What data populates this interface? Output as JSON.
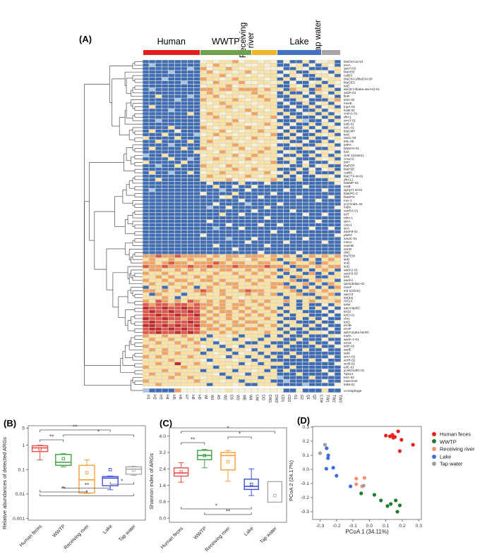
{
  "panels": {
    "a": "(A)",
    "b": "(B)",
    "c": "(C)",
    "d": "(D)"
  },
  "chart_data": [
    {
      "type": "heatmap",
      "groups": [
        {
          "name": "Human",
          "color": "#e3201b",
          "n": 9,
          "orientation": "horizontal"
        },
        {
          "name": "WWTP",
          "color": "#6fa04c",
          "n": 8,
          "orientation": "horizontal"
        },
        {
          "name": "Receiving river",
          "color": "#f0b429",
          "n": 4,
          "orientation": "vertical"
        },
        {
          "name": "Lake",
          "color": "#4472c4",
          "n": 7,
          "orientation": "horizontal"
        },
        {
          "name": "Tap water",
          "color": "#a6a6a6",
          "n": 3,
          "orientation": "vertical"
        }
      ],
      "columns": [
        "H1",
        "H2",
        "H3",
        "H4",
        "H5",
        "H6",
        "H7",
        "H8",
        "H9",
        "WI",
        "W1",
        "AS",
        "W2",
        "DS",
        "W3",
        "WE",
        "W4",
        "UW",
        "DO",
        "DW1",
        "DW2",
        "CD1",
        "CD2",
        "G1",
        "G2",
        "Q1",
        "Q2",
        "CJW",
        "TW1",
        "TW2",
        "TW3"
      ],
      "palette": {
        "B": "#3d6cb4",
        "L": "#a6c6e4",
        "C": "#f8f1d6",
        "Y": "#fce3a2",
        "O": "#f2a35f",
        "R": "#e0564a",
        "D": "#c32b2b"
      },
      "rows": [
        [
          "blaOXA10-01",
          "BBBBBBBBBCYCYYOCYYCYCBCBBYBCCYB"
        ],
        [
          "ereA",
          "BLBBBBBBBYCOYCYYCCYCYBBCYBCBYCB"
        ],
        [
          "qacH-02",
          "BBBBBBBLBOCYYOYCYYYCCCBBYCBBBCY"
        ],
        [
          "blaVEB",
          "BBBBLBBBBYOCYYCYOCYYYBCYBBYCCBY"
        ],
        [
          "catB3",
          "BBBBBBBBBYYYOCYYCYCYYCBYCBBYYCB"
        ],
        [
          "blaOXA1/blaOXA30",
          "BBBLBBBBBOYYCYOYYYYCYBYBCYBBCYY"
        ],
        [
          "blaGES",
          "BBBBBBLBBYCOYYYOCCYYCYBCBBCYBYC"
        ],
        [
          "tetE",
          "BBBBBBBBBCYYYOCYYYCCYBBYCBYBYBC"
        ],
        [
          "aac(6')-Ib(aka aacA4)-01",
          "BLBBBBBBBOOYOOYOOOYOYYBOYYBOYYB"
        ],
        [
          "aadA-01",
          "BBBBBBBBBYOYYCYYYOYYCBYBBCBYCBY"
        ],
        [
          "floR",
          "BBYBBBBLBYYOCYYCYYOYYBBYYBCBYCB"
        ],
        [
          "tetG-02",
          "BBBBBLBBBOYYYYOYCYYOYCBBYCBBBYO"
        ],
        [
          "mexE",
          "BBBBBBBBBYCYOYYYYCYYYBCBBYBCYBC"
        ],
        [
          "tnpA-01",
          "BYBBBBBBBYYCYOYCYYCYYBBCBBYBCYB"
        ],
        [
          "lnuB-01",
          "BBBBLBBBBCYYYYCYOYYCYYBBCBBYBCY"
        ],
        [
          "cmlA1-01",
          "BBBBBBBYBYOYCYYYCOYYYBYBBCYBYBC"
        ],
        [
          "dfrA1",
          "BBBBBBBBBYYOYCYYYYCYOCBYBBBCBYB"
        ],
        [
          "ermT-01",
          "BBLBBBBBBCYYYYOCYYYYCBBBYLBBCBY"
        ],
        [
          "tetB-01",
          "BBBBBBBBBYCYYOYYCCYOYYBCBBYBYCB"
        ],
        [
          "tetC-01",
          "BBBBYBBBBOYCYYYYOYYCYBCBBYBCBYC"
        ],
        [
          "blaCMY",
          "BYBBBCBBBYYYOCYCYYOYYCBYBBCBYBY"
        ],
        [
          "tetS",
          "BBBYBBBBLCYOYYCYYYYCOBYBCBBYCYB"
        ],
        [
          "vanC-03",
          "YBBBBYBBBYYCYOYYCOYYYBBYBBYBBCY"
        ],
        [
          "tetL-02",
          "BBYBBBBYBYOYYYYCYYCYYCYBBCBBYBC"
        ],
        [
          "tetPA",
          "BBBBLBBBBYYYCYOYYCYYCBBCYBBYCYB"
        ],
        [
          "blaSHV-01",
          "BYBBBBYBBOCYYYYOCYYOYYBBBYCBBYC"
        ],
        [
          "folA",
          "BBBBBBBBYYYCOYCYYYOYYBCYBBBCYCB"
        ],
        [
          "cintI-1(class1)",
          "LBBYBBBBBCYYYYOCYOYYYCBBYBYBYBY"
        ],
        [
          "cmx(A)",
          "BBBBYBBLBYYOYCYYOYYCYBYCBBBYCYB"
        ],
        [
          "tetH",
          "YBBBBBYBBYCYYYYCYCYYOBBYBCBBBCY"
        ],
        [
          "blaPER",
          "BBLBBYBBBOYYCOYYCYYYYYCBBYBCYBB"
        ],
        [
          "blaPSE",
          "BBBBBBBBBYYCYYOYYOCYYBBBYBCBCYB"
        ],
        [
          "catB8",
          "BYBBLBBYBCYYOYYCYYYOCCBYBBYBBBY"
        ],
        [
          "blaCTX-M-02",
          "BBBBBBBBBYOYYCYYOYCYYBYBCBBCYCB"
        ],
        [
          "dfrA12",
          "BBYBBBBBBYYYYOCYCCYYOYBBYBBBBYC"
        ],
        [
          "blaIMP-02",
          "BBBBBBBBBBCBBBBYBBBCBBBBBBBBBBC"
        ],
        [
          "ereB",
          "BBBBBBBBBBBYBBCBBCBBBBBBBCBBBBB"
        ],
        [
          "aph(2')-Id-02",
          "BLBBBBBBBBBBLBBBCBBBBBCBBBBBCBB"
        ],
        [
          "blaKPC-2",
          "BBBBBBBBBCBBBBYBBBBBCBBBBBBBBBB"
        ],
        [
          "blaSFO",
          "BBBBBBBBBBBBCYBBBBCBBBBBCBBBBCB"
        ],
        [
          "mcr-1",
          "BBBBBBBBBBBBBBBCBBBBBBBBBBBCBBB"
        ],
        [
          "ycjY/mdtL-01",
          "BBBBBBBBBBBCBBBBLBBBBCBBBBBBBBB"
        ],
        [
          "mdtA",
          "BBBBBBBBBBLBBCBBBBBCBBBBBBBBBBC"
        ],
        [
          "vanRA-01",
          "BBBBBBBBBBBBBBBBBCBBBBBCBBBBBBB"
        ],
        [
          "tetT",
          "BBBBBBBBBBBBYBBCBBBBBBBBBCBBCBB"
        ],
        [
          "ndm-1",
          "BBBBBBBBBBBBBBBBBBBCBBBBBBBBBBB"
        ],
        [
          "qnrA",
          "BBBBBBBBBBCBBBBBBBBBBBBBBBBCBBB"
        ],
        [
          "catA1",
          "BBBBBBBBBBBBBCBBBBCBBCBBBBBBBBB"
        ],
        [
          "strA",
          "BBBBBBBBBBBLBBBCBBBBBBBBBBCBBCB"
        ],
        [
          "aadA9-01",
          "BBBBBBBBBBBBBBBBBBBBCBBCBBBBBBB"
        ],
        [
          "pikR2",
          "BBBBBBBBBCBBBBBBBBBBBBBBBBBBBBC"
        ],
        [
          "ampC-01",
          "BBBBBBBBBBBBBLBBBCBBBBBBBCBBBBB"
        ],
        [
          "mexA",
          "BBBBBBBBBBBBBBBBCBBBBBCBBBBBCBB"
        ],
        [
          "vanHB",
          "BBBBBBBBBBBCBBBBBBBCBBBBBBBBBBB"
        ],
        [
          "emrD",
          "BBBBBBBBBBBBBBCBBBBBBBBBBBBBBBB"
        ],
        [
          "oleC",
          "BBBBBBBBBBBBBBBBBBCBBBBBCBBBBBB"
        ],
        [
          "blaTEM",
          "OOROOROOOOYOYOOYOOOYOYOYBYOYOYO"
        ],
        [
          "strB",
          "YOYYOYYOYYOYYOYYCOYYOBYYOBYBYOY"
        ],
        [
          "sul2",
          "OOYOROOYOOOROYOOYYOOYYBOYYOBOYY"
        ],
        [
          "sul1",
          "ROOROOOROOROOOROOOOROOYBOOYOYOO"
        ],
        [
          "aadA2-01",
          "YOOYYOYOYOYYOOYYOYOYYBOYBYBYOYB"
        ],
        [
          "aadA5-02",
          "OYYOYYOYYYYOYYOYYOYYOYBYYBOBYBY"
        ],
        [
          "tetX",
          "YYOYOYYYOYOYYYYOYYYOYBYBOYYBBYY"
        ],
        [
          "aadA1",
          "OYYOYOOYYOOYOYYYOYOYYYYOBBYOYYB"
        ],
        [
          "qacEdelta1-01",
          "YOYYOYYOYYYOYOOYYOYYOOBYYOBYBOY"
        ],
        [
          "mexF",
          "BYYBYYOYBYOYYYOYYYYYOYOBYBYBYBO"
        ],
        [
          "intI-1(clinic)",
          "OOYOYOYYOROYOYYOROOYYYYOBYOYOYY"
        ],
        [
          "aacC2",
          "YBOYYYBYYOYYOYYYOYOYOBYYOBBYYOB"
        ],
        [
          "tet(34)",
          "YYYOYBYYYYYYYOYCYYYYYYBYYYYBOYY"
        ],
        [
          "IS613",
          "OYROYOYROYOYOYYOYOYOYYOYBYOYYYO"
        ],
        [
          "tetW",
          "RORRORROROOYOYOOYYOYYYBYBYBBCBY"
        ],
        [
          "aacA/aphD",
          "DRRDRRDRROYOOYOYOYYOYBYYBYBYBCB"
        ],
        [
          "tet32",
          "RDRRDRRDRYOYOOYOYOYYOYBYYBBBCBC"
        ],
        [
          "tetO-01",
          "RRDRRDRRDOYOYOYYOYOYYBYBYYBBBCB"
        ],
        [
          "cfxA",
          "DRRDRRORRYOYYOYOYYYOYYBBYBYBCBB"
        ],
        [
          "tetQ",
          "RDRRORRDROYOYYOYOOYYYBYYBBBYBBC"
        ],
        [
          "ermB",
          "DDRDRDRRDOOYOYOOYYOYOYBYYBYBCBB"
        ],
        [
          "ermF",
          "RDDRDRDRRYOOYOYYOOYYYBYBBYBBBCB"
        ],
        [
          "aphA1(aka kanR)",
          "RRDRRDRDROYYOYOYYYYOYYBYBBYYCBB"
        ],
        [
          "mefA",
          "OYYOYYOYYYBYYCYBYYYBYBYBBYBBBYC"
        ],
        [
          "aadA-1-01",
          "YOYYOYYOYBYCYYBYCYBYYYBBYBBBCBB"
        ],
        [
          "ermX",
          "YYOYYOYYOYYBCYYYBBYYBBBYBBYBBCB"
        ],
        [
          "tetR-02",
          "OYYYYYOYYCYYBYCBYYYBYBYBBBBYBBC"
        ],
        [
          "aadE",
          "YOYOYYYYOYBYYBYYCBYYYYBBBYBBCBB"
        ],
        [
          "sat4",
          "YYYOYOYYYBYCYYBCYYBYBBBYBBBBBBB"
        ],
        [
          "acrA-02",
          "OYOYYYYOYYYYCBYYBYYBYBYBYBBBBCB"
        ],
        [
          "acrR-02",
          "YYYYOYYYYCBYYYCYYBYYBBBBBBYBCBB"
        ],
        [
          "acrB-01",
          "YYOYYDYYOYCYYYYBCYBYYYBBBBBBBBC"
        ],
        [
          "tolC-01",
          "OYYYYYOYYYYBYCYYYYYYBBBYBBBBBBB"
        ],
        [
          "yceE/mdtG-01",
          "YYYOYYYYYBYYYYBYYCYBYBYBBBBBCBB"
        ],
        [
          "Tp614",
          "YOYYYOYYYYYCBYYCBYYYYBBBYBBBBCB"
        ],
        [
          "tetA-02",
          "YYYYOYYOYCYYYBYYYYBYYLBBBBYBBBB"
        ],
        [
          "matA/mel",
          "OYYYYYYYOYYYCYYBYYYYBBLBBBBBCBB"
        ],
        [
          "tetM-01",
          "YYOYYYYYYYBYYYCYBBYYYBBBBLBBBBC"
        ]
      ],
      "special_row": [
        "crAssphage",
        "LBBBBOCCCCCCCYCCCCCCCCBBCBBBYBB"
      ]
    },
    {
      "type": "box",
      "ylabel": "Relative abundances of detected ARGs",
      "scale": "log",
      "yticks": [
        "5",
        "1",
        "0.1",
        "0.01",
        "0.001"
      ],
      "ytick_values": [
        5,
        1,
        0.1,
        0.01,
        0.001
      ],
      "categories": [
        "Human feces",
        "WWTP",
        "Receiving river",
        "Lake",
        "Tap water"
      ],
      "colors": [
        "#e85048",
        "#3fa145",
        "#f5a03a",
        "#3d4fd6",
        "#a8a8a8"
      ],
      "boxes": [
        {
          "lo": 0.25,
          "q1": 0.55,
          "median": 0.78,
          "q3": 0.95,
          "hi": 1.0,
          "mean": 0.7
        },
        {
          "lo": 0.13,
          "q1": 0.15,
          "median": 0.2,
          "q3": 0.42,
          "hi": 0.45,
          "mean": 0.28
        },
        {
          "lo": 0.0105,
          "q1": 0.011,
          "median": 0.038,
          "q3": 0.15,
          "hi": 0.25,
          "mean": 0.075
        },
        {
          "lo": 0.015,
          "q1": 0.022,
          "median": 0.045,
          "q3": 0.052,
          "hi": 0.055,
          "mean": 0.1
        },
        {
          "lo": 0.058,
          "q1": 0.065,
          "median": 0.105,
          "q3": 0.13,
          "hi": 0.138,
          "mean": 0.095
        }
      ],
      "sig_top": [
        {
          "a": 0,
          "b": 3,
          "label": "**",
          "level": 0
        },
        {
          "a": 1,
          "b": 4,
          "label": "*",
          "level": 1
        },
        {
          "a": 0,
          "b": 1,
          "label": "**",
          "level": 2
        }
      ],
      "sig_bottom": [
        {
          "a": 3,
          "b": 4,
          "label": "*",
          "level": 0
        },
        {
          "a": 1,
          "b": 3,
          "label": "**",
          "level": 1
        },
        {
          "a": 0,
          "b": 2,
          "label": "**",
          "level": 2
        },
        {
          "a": 0,
          "b": 4,
          "label": "*",
          "level": 3
        }
      ]
    },
    {
      "type": "box",
      "ylabel": "Shannon index of ARGs",
      "scale": "linear",
      "yticks": [
        "4.0",
        "3.2",
        "2.4",
        "1.6",
        "0.8",
        "0.0"
      ],
      "ytick_values": [
        4.0,
        3.2,
        2.4,
        1.6,
        0.8,
        0.0
      ],
      "categories": [
        "Human feces",
        "WWTP",
        "Receiving river",
        "Lake",
        "Tap water"
      ],
      "colors": [
        "#e85048",
        "#3fa145",
        "#f5a03a",
        "#3d4fd6",
        "#a8a8a8"
      ],
      "boxes": [
        {
          "lo": 1.75,
          "q1": 2.05,
          "median": 2.2,
          "q3": 2.45,
          "hi": 2.7,
          "mean": 2.25
        },
        {
          "lo": 2.45,
          "q1": 2.85,
          "median": 3.05,
          "q3": 3.3,
          "hi": 3.35,
          "mean": 3.05
        },
        {
          "lo": 1.8,
          "q1": 2.35,
          "median": 3.05,
          "q3": 3.2,
          "hi": 3.3,
          "mean": 2.75
        },
        {
          "lo": 1.1,
          "q1": 1.4,
          "median": 1.55,
          "q3": 1.9,
          "hi": 2.4,
          "mean": 1.65
        },
        {
          "lo": 0.78,
          "q1": 0.78,
          "median": null,
          "q3": 1.78,
          "hi": 1.78,
          "mean": 1.1
        }
      ],
      "sig_top": [
        {
          "a": 0,
          "b": 4,
          "label": "*",
          "level": 0
        },
        {
          "a": 2,
          "b": 3,
          "label": "*",
          "level": 1
        },
        {
          "a": 0,
          "b": 1,
          "label": "**",
          "level": 2
        }
      ],
      "sig_bottom": [
        {
          "a": 0,
          "b": 3,
          "label": "*",
          "level": 0
        },
        {
          "a": 1,
          "b": 3,
          "label": "**",
          "level": 1
        }
      ]
    },
    {
      "type": "scatter",
      "xlabel": "PCoA 1 (34.11%)",
      "ylabel": "PCoA 2 (24.17%)",
      "xticks": [
        "-0.3",
        "-0.2",
        "-0.1",
        "0.0",
        "0.1",
        "0.2",
        "0.3"
      ],
      "xtick_values": [
        -0.3,
        -0.2,
        -0.1,
        0.0,
        0.1,
        0.2,
        0.3
      ],
      "yticks": [
        "0.3",
        "0.2",
        "0.1",
        "0.0",
        "-0.1",
        "-0.2",
        "-0.3"
      ],
      "ytick_values": [
        0.3,
        0.2,
        0.1,
        0.0,
        -0.1,
        -0.2,
        -0.3
      ],
      "xlim": [
        -0.345,
        0.316
      ],
      "ylim": [
        -0.355,
        0.305
      ],
      "series": [
        {
          "name": "Human feces",
          "color": "#e8211d",
          "points": [
            [
              0.1,
              0.24
            ],
            [
              0.125,
              0.235
            ],
            [
              0.14,
              0.245
            ],
            [
              0.145,
              0.225
            ],
            [
              0.155,
              0.23
            ],
            [
              0.175,
              0.27
            ],
            [
              0.195,
              0.21
            ],
            [
              0.185,
              0.13
            ],
            [
              0.265,
              0.175
            ]
          ]
        },
        {
          "name": "WWTP",
          "color": "#1e7d2c",
          "points": [
            [
              -0.05,
              -0.17
            ],
            [
              0.03,
              -0.18
            ],
            [
              0.07,
              -0.22
            ],
            [
              0.11,
              -0.26
            ],
            [
              0.13,
              -0.245
            ],
            [
              0.16,
              -0.22
            ],
            [
              0.185,
              -0.255
            ],
            [
              0.17,
              -0.3
            ]
          ]
        },
        {
          "name": "Receiving river",
          "color": "#f4926c",
          "points": [
            [
              -0.08,
              -0.065
            ],
            [
              -0.03,
              -0.06
            ],
            [
              -0.08,
              -0.105
            ],
            [
              -0.045,
              -0.12
            ]
          ]
        },
        {
          "name": "Lake",
          "color": "#3e6ee0",
          "points": [
            [
              -0.26,
              0.15
            ],
            [
              -0.25,
              0.1
            ],
            [
              -0.252,
              0.08
            ],
            [
              -0.262,
              0.005
            ],
            [
              -0.22,
              0.012
            ],
            [
              -0.2,
              -0.045
            ],
            [
              -0.115,
              -0.12
            ]
          ]
        },
        {
          "name": "Tap water",
          "color": "#a0a0a0",
          "points": [
            [
              -0.3,
              0.115
            ],
            [
              -0.27,
              0.175
            ],
            [
              -0.035,
              -0.115
            ]
          ]
        }
      ]
    }
  ]
}
